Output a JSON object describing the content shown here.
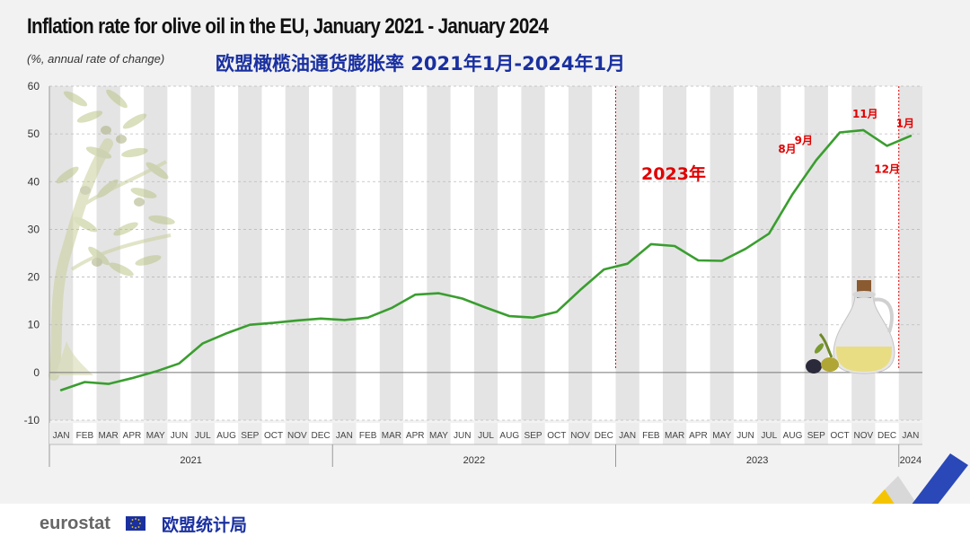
{
  "header": {
    "title": "Inflation rate for olive oil in the EU, January 2021 - January 2024",
    "subtitle": "(%, annual rate of change)",
    "cn_title": "欧盟橄榄油通货膨胀率 2021年1月-2024年1月"
  },
  "footer": {
    "brand": "eurostat",
    "cn_brand": "欧盟统计局"
  },
  "colors": {
    "line": "#3a9e2f",
    "annotation": "#e00000",
    "cn_title": "#1a30a0",
    "grid_band": "#e4e4e4"
  },
  "icons": [
    "olive-tree-icon",
    "olive-oil-bottle-icon",
    "olives-icon",
    "eu-flag-icon",
    "eurostat-swoosh-icon"
  ],
  "annotations": {
    "year_label": "2023年",
    "point_labels": [
      {
        "index": 31,
        "text": "8月"
      },
      {
        "index": 32,
        "text": "9月"
      },
      {
        "index": 34,
        "text": "11月"
      },
      {
        "index": 35,
        "text": "12月"
      },
      {
        "index": 36,
        "text": "1月"
      }
    ]
  },
  "chart_data": {
    "type": "line",
    "title": "Inflation rate for olive oil in the EU, January 2021 - January 2024",
    "subtitle": "(%, annual rate of change)",
    "xlabel": "",
    "ylabel": "",
    "ylim": [
      -10,
      60
    ],
    "yticks": [
      -10,
      0,
      10,
      20,
      30,
      40,
      50,
      60
    ],
    "grid": true,
    "categories": [
      "JAN",
      "FEB",
      "MAR",
      "APR",
      "MAY",
      "JUN",
      "JUL",
      "AUG",
      "SEP",
      "OCT",
      "NOV",
      "DEC",
      "JAN",
      "FEB",
      "MAR",
      "APR",
      "MAY",
      "JUN",
      "JUL",
      "AUG",
      "SEP",
      "OCT",
      "NOV",
      "DEC",
      "JAN",
      "FEB",
      "MAR",
      "APR",
      "MAY",
      "JUN",
      "JUL",
      "AUG",
      "SEP",
      "OCT",
      "NOV",
      "DEC",
      "JAN"
    ],
    "years": [
      {
        "label": "2021",
        "start": 0,
        "end": 11
      },
      {
        "label": "2022",
        "start": 12,
        "end": 23
      },
      {
        "label": "2023",
        "start": 24,
        "end": 35
      },
      {
        "label": "2024",
        "start": 36,
        "end": 36
      }
    ],
    "series": [
      {
        "values": [
          -3.7,
          -2.0,
          -2.4,
          -1.2,
          0.2,
          1.9,
          6.1,
          8.2,
          10.0,
          10.4,
          10.9,
          11.3,
          11.0,
          11.5,
          13.5,
          16.3,
          16.6,
          15.5,
          13.6,
          11.8,
          11.5,
          12.7,
          17.3,
          21.6,
          22.8,
          26.9,
          26.5,
          23.5,
          23.4,
          25.9,
          29.1,
          37.4,
          44.5,
          50.3,
          50.8,
          47.5,
          49.6
        ]
      }
    ],
    "reference_lines": [
      "DEC 2022",
      "DEC 2023"
    ]
  }
}
